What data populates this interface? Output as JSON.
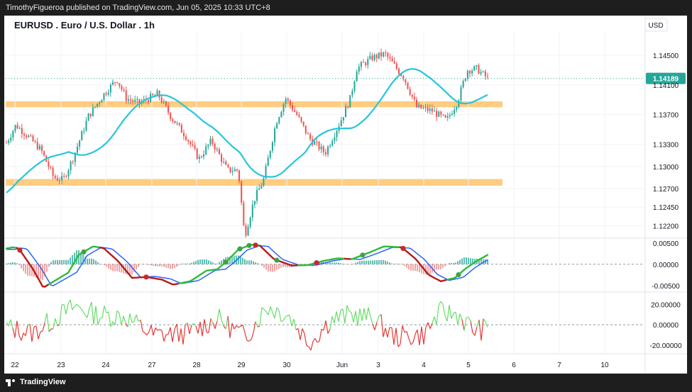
{
  "header": {
    "published": "TimothyFigueroa published on TradingView.com, Jun 05, 2025 10:33 UTC+8"
  },
  "footer": {
    "brand": "TradingView"
  },
  "chart_data": {
    "type": "candlestick",
    "title": "EURUSD . Euro / U.S. Dollar . 1h",
    "currency": "USD",
    "current_price": "1.14189",
    "x_tick_labels": [
      "22",
      "23",
      "24",
      "27",
      "28",
      "29",
      "30",
      "Jun",
      "3",
      "4",
      "5",
      "6",
      "7",
      "10"
    ],
    "price_axis": {
      "ylim": [
        1.1205,
        1.1475
      ],
      "tick_labels": [
        "1.14500",
        "1.14100",
        "1.13700",
        "1.13300",
        "1.13000",
        "1.12700",
        "1.12450",
        "1.12200"
      ]
    },
    "support_resistance_zones": [
      [
        1.138,
        1.1388
      ],
      [
        1.1274,
        1.1283
      ]
    ],
    "moving_average_color": "#26c6da",
    "up_color": "#26a69a",
    "down_color": "#ef5350",
    "macd_axis": {
      "ylim": [
        -0.0062,
        0.0058
      ],
      "tick_labels": [
        "0.00500",
        "0.00000",
        "-0.00500"
      ]
    },
    "oscillator_axis": {
      "ylim": [
        -27,
        30
      ],
      "tick_labels": [
        "20.00000",
        "0.00000",
        "-20.00000"
      ]
    },
    "colors": {
      "wave_up": "#2ebd3a",
      "wave_down": "#b71c1c",
      "signal": "#2962ff",
      "zone": "#ffcc80"
    }
  }
}
